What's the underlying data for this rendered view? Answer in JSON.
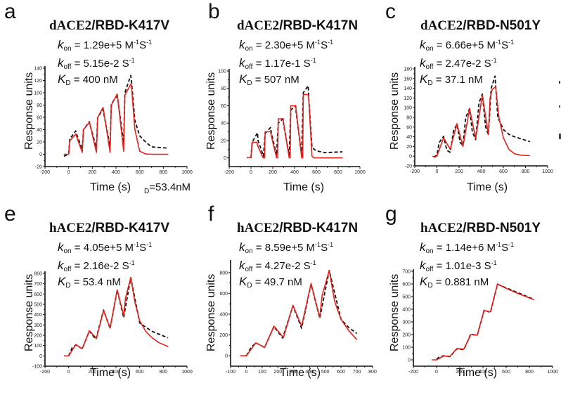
{
  "figure": {
    "stray_text": {
      "sub": "D",
      "text": "=53.4nM"
    }
  },
  "chart_data": [
    {
      "id": "a",
      "type": "line",
      "letter": "a",
      "title_prefix": "dACE2",
      "title_suffix": "/RBD-K417V",
      "params": {
        "kon": "1.29e+5",
        "koff": "5.15e-2",
        "KD": "400 nM"
      },
      "param_labels": {
        "k": "k",
        "K": "K",
        "on": "on",
        "off": "off",
        "D": "D",
        "kon_unit": "M",
        "kon_exp1": "-1",
        "kon_unit2": "S",
        "kon_exp2": "-1",
        "koff_unit": "S",
        "koff_exp": "-1"
      },
      "xlabel": "Time (s)",
      "ylabel": "Response units",
      "xlim": [
        -200,
        1000
      ],
      "ylim": [
        -20,
        140
      ],
      "xticks": [
        -200,
        0,
        200,
        400,
        600,
        800,
        1000
      ],
      "yticks": [
        -20,
        0,
        20,
        40,
        60,
        80,
        100,
        120,
        140
      ],
      "series": [
        {
          "name": "fit",
          "color": "#e8211c",
          "style": "solid",
          "x": [
            -40,
            0,
            10,
            60,
            65,
            115,
            125,
            175,
            180,
            235,
            245,
            290,
            295,
            350,
            360,
            410,
            412,
            465,
            475,
            525,
            530,
            560,
            600,
            650,
            700,
            840
          ],
          "y": [
            0,
            0,
            22,
            33,
            30,
            3,
            40,
            52,
            48,
            3,
            60,
            76,
            72,
            3,
            80,
            98,
            96,
            5,
            96,
            114,
            112,
            40,
            5,
            0.5,
            0,
            0
          ]
        },
        {
          "name": "data",
          "color": "#111111",
          "style": "dashed",
          "x": [
            -40,
            0,
            10,
            60,
            65,
            115,
            125,
            175,
            180,
            235,
            245,
            290,
            295,
            350,
            360,
            410,
            415,
            465,
            475,
            525,
            530,
            560,
            600,
            650,
            700,
            840
          ],
          "y": [
            -3,
            0,
            25,
            38,
            34,
            8,
            40,
            53,
            48,
            10,
            60,
            73,
            68,
            12,
            82,
            95,
            90,
            18,
            100,
            128,
            120,
            55,
            30,
            20,
            12,
            10
          ]
        }
      ]
    },
    {
      "id": "b",
      "type": "line",
      "letter": "b",
      "title_prefix": "dACE2",
      "title_suffix": "/RBD-K417N",
      "params": {
        "kon": "2.30e+5",
        "koff": "1.17e-1",
        "KD": "507 nM"
      },
      "param_labels": {
        "k": "k",
        "K": "K",
        "on": "on",
        "off": "off",
        "D": "D",
        "kon_unit": "M",
        "kon_exp1": "-1",
        "kon_unit2": "S",
        "kon_exp2": "-1",
        "koff_unit": "S",
        "koff_exp": "-1"
      },
      "xlabel": "Time (s)",
      "ylabel": "Response units",
      "xlim": [
        -200,
        1000
      ],
      "ylim": [
        -10,
        100
      ],
      "xticks": [
        -200,
        0,
        200,
        400,
        600,
        800,
        1000
      ],
      "yticks": [
        0,
        20,
        40,
        60,
        80,
        100
      ],
      "series": [
        {
          "name": "fit",
          "color": "#e8211c",
          "style": "solid",
          "x": [
            -40,
            -5,
            0,
            10,
            55,
            62,
            110,
            125,
            130,
            180,
            185,
            235,
            245,
            250,
            295,
            300,
            350,
            360,
            365,
            410,
            415,
            465,
            475,
            480,
            525,
            530,
            560,
            580,
            840
          ],
          "y": [
            0,
            1,
            0,
            18,
            18,
            14,
            0,
            0,
            30,
            30,
            26,
            0,
            0,
            45,
            45,
            40,
            0,
            0,
            60,
            60,
            55,
            0,
            0,
            73,
            73,
            68,
            2,
            0,
            0
          ]
        },
        {
          "name": "data",
          "color": "#111111",
          "style": "dashed",
          "x": [
            0,
            10,
            60,
            65,
            115,
            130,
            180,
            185,
            235,
            250,
            295,
            300,
            350,
            365,
            410,
            415,
            465,
            480,
            525,
            530,
            560,
            600,
            680,
            840
          ],
          "y": [
            0,
            18,
            29,
            20,
            2,
            28,
            35,
            30,
            3,
            40,
            45,
            38,
            3,
            55,
            60,
            52,
            3,
            75,
            83,
            70,
            12,
            8,
            6,
            7
          ]
        }
      ]
    },
    {
      "id": "c",
      "type": "line",
      "letter": "c",
      "title_prefix": "dACE2",
      "title_suffix": "/RBD-N501Y",
      "params": {
        "kon": "6.66e+5",
        "koff": "2.47e-2",
        "KD": "37.1 nM"
      },
      "param_labels": {
        "k": "k",
        "K": "K",
        "on": "on",
        "off": "off",
        "D": "D",
        "kon_unit": "M",
        "kon_exp1": "-1",
        "kon_unit2": "S",
        "kon_exp2": "-1",
        "koff_unit": "S",
        "koff_exp": "-1"
      },
      "xlabel": "Time (s)",
      "ylabel": "Response units",
      "xlim": [
        -200,
        1000
      ],
      "ylim": [
        -20,
        180
      ],
      "xticks": [
        -200,
        0,
        200,
        400,
        600,
        800,
        1000
      ],
      "yticks": [
        -20,
        0,
        20,
        40,
        60,
        80,
        100,
        120,
        140,
        160,
        180
      ],
      "series": [
        {
          "name": "fit",
          "color": "#e8211c",
          "style": "solid",
          "x": [
            -40,
            -20,
            0,
            60,
            120,
            180,
            235,
            295,
            350,
            410,
            465,
            480,
            500,
            530,
            560,
            600,
            650,
            700,
            760,
            840
          ],
          "y": [
            0,
            -2,
            0,
            38,
            14,
            67,
            20,
            98,
            36,
            126,
            44,
            120,
            138,
            143,
            80,
            38,
            14,
            5,
            2,
            1
          ]
        },
        {
          "name": "data",
          "color": "#111111",
          "style": "dashed",
          "x": [
            -30,
            0,
            20,
            60,
            90,
            120,
            150,
            180,
            210,
            235,
            260,
            295,
            320,
            350,
            380,
            410,
            440,
            465,
            490,
            525,
            550,
            600,
            650,
            700,
            840
          ],
          "y": [
            -2,
            2,
            28,
            41,
            12,
            8,
            52,
            66,
            28,
            22,
            80,
            98,
            50,
            34,
            110,
            128,
            60,
            44,
            140,
            165,
            80,
            55,
            45,
            40,
            30
          ]
        }
      ]
    },
    {
      "id": "e",
      "type": "line",
      "letter": "e",
      "title_prefix": "hACE2",
      "title_suffix": "/RBD-K417V",
      "params": {
        "kon": "4.05e+5",
        "koff": "2.16e-2",
        "KD": "53.4 nM"
      },
      "param_labels": {
        "k": "k",
        "K": "K",
        "on": "on",
        "off": "off",
        "D": "D",
        "kon_unit": "M",
        "kon_exp1": "-1",
        "kon_unit2": "S",
        "kon_exp2": "-1",
        "koff_unit": "S",
        "koff_exp": "-1"
      },
      "xlabel": "Time (s)",
      "ylabel": "Response units",
      "xlim": [
        -200,
        1000
      ],
      "ylim": [
        -100,
        800
      ],
      "xticks": [
        -200,
        0,
        200,
        400,
        600,
        800,
        1000
      ],
      "yticks": [
        -100,
        0,
        100,
        200,
        300,
        400,
        500,
        600,
        700,
        800
      ],
      "series": [
        {
          "name": "fit",
          "color": "#e8211c",
          "style": "solid",
          "x": [
            -40,
            0,
            60,
            115,
            175,
            235,
            295,
            350,
            410,
            465,
            480,
            525,
            560,
            600,
            650,
            700,
            760,
            840
          ],
          "y": [
            0,
            0,
            110,
            70,
            245,
            170,
            440,
            270,
            640,
            390,
            560,
            760,
            520,
            340,
            240,
            180,
            130,
            90
          ]
        },
        {
          "name": "data",
          "color": "#111111",
          "style": "dashed",
          "x": [
            0,
            30,
            60,
            115,
            175,
            230,
            295,
            350,
            410,
            465,
            525,
            600,
            650,
            700,
            840
          ],
          "y": [
            0,
            80,
            105,
            70,
            240,
            160,
            445,
            265,
            640,
            370,
            760,
            320,
            280,
            240,
            175
          ]
        }
      ]
    },
    {
      "id": "f",
      "type": "line",
      "letter": "f",
      "title_prefix": "hACE2",
      "title_suffix": "/RBD-K417N",
      "params": {
        "kon": "8.59e+5",
        "koff": "4.27e-2",
        "KD": "49.7 nM"
      },
      "param_labels": {
        "k": "k",
        "K": "K",
        "on": "on",
        "off": "off",
        "D": "D",
        "kon_unit": "M",
        "kon_exp1": "-1",
        "kon_unit2": "S",
        "kon_exp2": "-1",
        "koff_unit": "S",
        "koff_exp": "-1"
      },
      "xlabel": "Time (s)",
      "ylabel": "Response units",
      "xlim": [
        -100,
        800
      ],
      "ylim": [
        -100,
        900
      ],
      "xticks": [
        -100,
        0,
        100,
        200,
        300,
        400,
        500,
        600,
        700,
        800
      ],
      "yticks": [
        0,
        200,
        400,
        600,
        800
      ],
      "series": [
        {
          "name": "fit",
          "color": "#e8211c",
          "style": "solid",
          "x": [
            -40,
            0,
            60,
            115,
            175,
            235,
            295,
            350,
            410,
            465,
            480,
            525,
            560,
            600,
            650,
            700
          ],
          "y": [
            0,
            0,
            125,
            80,
            285,
            175,
            485,
            285,
            695,
            370,
            580,
            820,
            520,
            350,
            240,
            155
          ]
        },
        {
          "name": "data",
          "color": "#111111",
          "style": "dashed",
          "x": [
            0,
            30,
            60,
            115,
            175,
            230,
            295,
            350,
            410,
            465,
            525,
            600,
            650,
            700
          ],
          "y": [
            0,
            80,
            125,
            80,
            280,
            170,
            480,
            265,
            690,
            360,
            820,
            350,
            270,
            215
          ]
        }
      ]
    },
    {
      "id": "g",
      "type": "line",
      "letter": "g",
      "title_prefix": "hACE2",
      "title_suffix": "/RBD-N501Y",
      "params": {
        "kon": "1.14e+6",
        "koff": "1.01e-3",
        "KD": "0.881 nM"
      },
      "param_labels": {
        "k": "k",
        "K": "K",
        "on": "on",
        "off": "off",
        "D": "D",
        "kon_unit": "M",
        "kon_exp1": "-1",
        "kon_unit2": "S",
        "kon_exp2": "-1",
        "koff_unit": "S",
        "koff_exp": "-1"
      },
      "xlabel": "Time (s)",
      "ylabel": "Response units",
      "xlim": [
        -200,
        1000
      ],
      "ylim": [
        -50,
        700
      ],
      "xticks": [
        -200,
        0,
        200,
        400,
        600,
        800,
        1000
      ],
      "yticks": [
        0,
        100,
        200,
        300,
        400,
        500,
        600,
        700
      ],
      "series": [
        {
          "name": "fit",
          "color": "#e8211c",
          "style": "solid",
          "x": [
            -40,
            0,
            60,
            115,
            175,
            235,
            295,
            350,
            410,
            465,
            525,
            600,
            700,
            840
          ],
          "y": [
            0,
            0,
            30,
            28,
            90,
            85,
            200,
            195,
            390,
            380,
            600,
            565,
            525,
            475
          ]
        },
        {
          "name": "data",
          "color": "#111111",
          "style": "dashed",
          "x": [
            0,
            20,
            60,
            115,
            175,
            235,
            295,
            350,
            410,
            465,
            525,
            840
          ],
          "y": [
            5,
            20,
            32,
            25,
            88,
            80,
            205,
            192,
            392,
            375,
            598,
            478
          ]
        }
      ]
    }
  ]
}
